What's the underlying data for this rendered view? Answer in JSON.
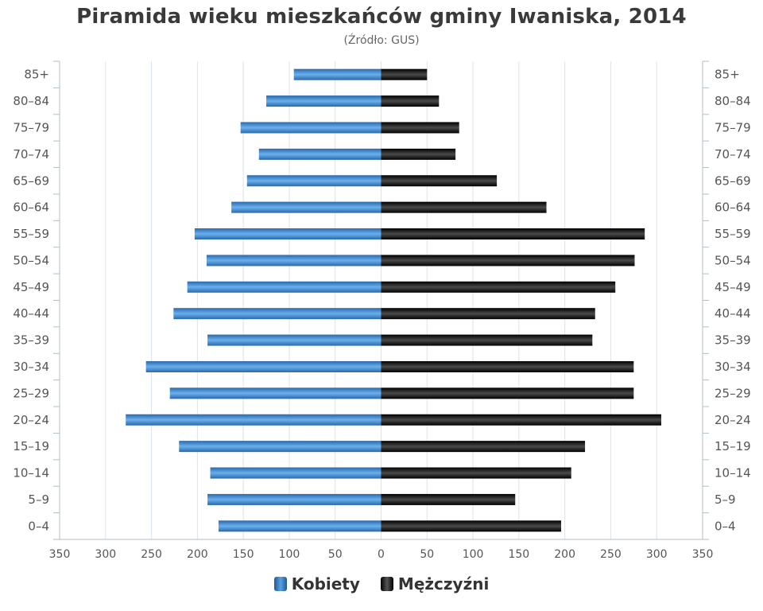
{
  "title": "Piramida wieku mieszkańców gminy Iwaniska, 2014",
  "subtitle": "(Źródło: GUS)",
  "legend": {
    "female": "Kobiety",
    "male": "Mężczyźni"
  },
  "colors": {
    "female": "#3d7fc7",
    "male": "#111111",
    "grid": "#dde3ea",
    "axis": "#b0bec8",
    "text": "#555555"
  },
  "chart_data": {
    "type": "bar",
    "orientation": "horizontal-population-pyramid",
    "title": "Piramida wieku mieszkańców gminy Iwaniska, 2014",
    "subtitle": "(Źródło: GUS)",
    "categories": [
      "85+",
      "80–84",
      "75–79",
      "70–74",
      "65–69",
      "60–64",
      "55–59",
      "50–54",
      "45–49",
      "40–44",
      "35–39",
      "30–34",
      "25–29",
      "20–24",
      "15–19",
      "10–14",
      "5–9",
      "0–4"
    ],
    "series": [
      {
        "name": "Kobiety",
        "color": "#3d7fc7",
        "side": "left",
        "values": [
          95,
          125,
          153,
          133,
          146,
          163,
          203,
          190,
          211,
          226,
          189,
          256,
          230,
          278,
          220,
          186,
          189,
          177
        ]
      },
      {
        "name": "Mężczyźni",
        "color": "#111111",
        "side": "right",
        "values": [
          50,
          63,
          85,
          81,
          126,
          180,
          287,
          276,
          255,
          233,
          230,
          275,
          275,
          305,
          222,
          207,
          146,
          196
        ]
      }
    ],
    "xlim": [
      -350,
      350
    ],
    "x_ticks": [
      350,
      300,
      250,
      200,
      150,
      100,
      50,
      0,
      50,
      100,
      150,
      200,
      250,
      300,
      350
    ],
    "grid": true,
    "legend_position": "bottom-center"
  }
}
